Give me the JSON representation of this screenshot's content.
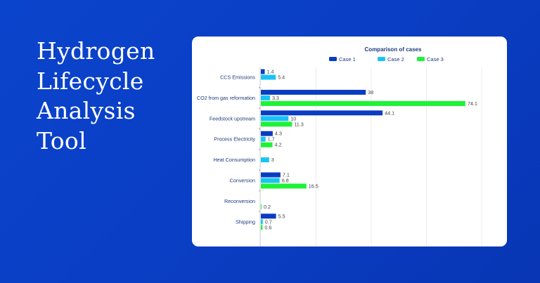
{
  "hero": {
    "title_lines": [
      "Hydrogen",
      "Lifecycle",
      "Analysis",
      "Tool"
    ]
  },
  "colors": {
    "background": "#0a3ec4",
    "case1": "#0a3cc2",
    "case2": "#19c3f5",
    "case3": "#1ef237",
    "label": "#1f3a7a"
  },
  "chart_data": {
    "type": "bar",
    "orientation": "horizontal",
    "title": "Comparison of cases",
    "categories": [
      "CCS Emissions",
      "CO2 from gas reformation",
      "Feedstock upstream",
      "Process Electricity",
      "Heat Consumption",
      "Conversion",
      "Reconversion",
      "Shipping"
    ],
    "series": [
      {
        "name": "Case 1",
        "values": [
          1.4,
          38,
          44.1,
          4.3,
          null,
          7.1,
          null,
          5.5
        ]
      },
      {
        "name": "Case 2",
        "values": [
          5.4,
          3.3,
          10,
          1.7,
          3,
          6.8,
          null,
          0.7
        ]
      },
      {
        "name": "Case 3",
        "values": [
          null,
          74.1,
          11.3,
          4.2,
          null,
          16.5,
          0.2,
          0.6
        ]
      }
    ],
    "xlim": [
      0,
      80
    ],
    "grid": true,
    "gridlines": [
      20,
      40,
      60,
      80
    ],
    "legend": "top",
    "data_labels": true
  }
}
